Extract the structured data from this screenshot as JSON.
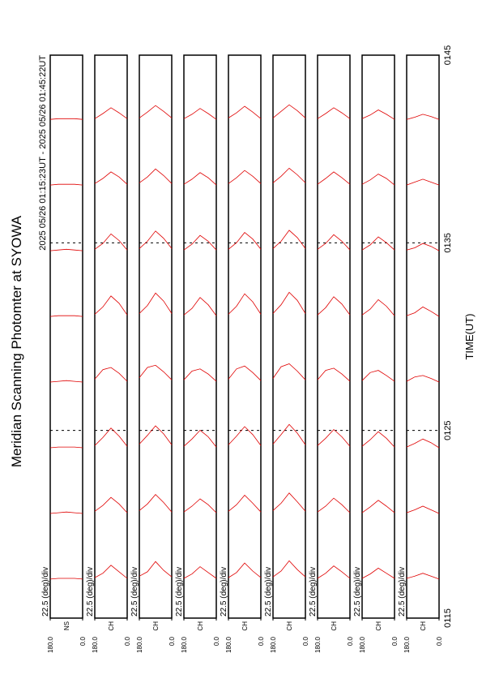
{
  "chart_data": {
    "type": "scan",
    "title": "Meridian Scanning Photomter at SYOWA",
    "subtitle": "2025 05/26 01:15:23UT - 2025 05/26 01:45:22UT",
    "x_label": "TIME(UT)",
    "xlim": [
      75,
      105
    ],
    "xticks": [
      {
        "value": 75,
        "label": "0115"
      },
      {
        "value": 85,
        "label": "0125"
      },
      {
        "value": 95,
        "label": "0135"
      },
      {
        "value": 105,
        "label": "0145"
      }
    ],
    "x": [
      77,
      80.5,
      84,
      87.5,
      91,
      94.5,
      98,
      101.5
    ],
    "color": "#e00000",
    "panels": [
      {
        "label": "NS",
        "scale_label": "22.5 (deg)/div",
        "ylim": [
          0,
          180
        ],
        "yticks": [
          {
            "value": 0,
            "label": "0.0"
          },
          {
            "value": 180,
            "label": "180.0"
          }
        ],
        "profiles": [
          [
            0.2,
            0.3,
            0.3,
            0.3,
            0.2
          ],
          [
            0.2,
            0.3,
            0.4,
            0.3,
            0.2
          ],
          [
            0.2,
            0.3,
            0.3,
            0.3,
            0.2
          ],
          [
            0.2,
            0.3,
            0.4,
            0.3,
            0.2
          ],
          [
            0.2,
            0.3,
            0.3,
            0.3,
            0.2
          ],
          [
            0.2,
            0.3,
            0.4,
            0.3,
            0.2
          ],
          [
            0.2,
            0.3,
            0.3,
            0.3,
            0.2
          ],
          [
            0.2,
            0.3,
            0.3,
            0.3,
            0.2
          ]
        ]
      },
      {
        "label": "CH",
        "scale_label": "22.5 (deg)/div",
        "ylim": [
          0,
          180
        ],
        "yticks": [
          {
            "value": 0,
            "label": "0.0"
          },
          {
            "value": 180,
            "label": "180.0"
          }
        ],
        "profiles": [
          [
            0.3,
            1.2,
            2.1,
            1.0,
            0.4
          ],
          [
            0.3,
            1.5,
            2.4,
            1.3,
            0.5
          ],
          [
            0.4,
            1.8,
            2.9,
            1.6,
            0.5
          ],
          [
            0.3,
            1.4,
            2.2,
            1.9,
            0.6
          ],
          [
            0.4,
            2.0,
            3.0,
            1.5,
            0.5
          ],
          [
            0.3,
            1.6,
            2.5,
            1.2,
            0.4
          ],
          [
            0.3,
            1.3,
            2.0,
            1.1,
            0.4
          ],
          [
            0.3,
            1.1,
            1.8,
            1.0,
            0.3
          ]
        ]
      },
      {
        "label": "CH",
        "scale_label": "22.5 (deg)/div",
        "ylim": [
          0,
          180
        ],
        "yticks": [
          {
            "value": 0,
            "label": "0.0"
          },
          {
            "value": 180,
            "label": "180.0"
          }
        ],
        "profiles": [
          [
            0.5,
            1.4,
            2.6,
            1.2,
            0.6
          ],
          [
            0.4,
            1.7,
            2.8,
            1.5,
            0.6
          ],
          [
            0.6,
            2.1,
            3.2,
            1.9,
            0.7
          ],
          [
            0.5,
            1.6,
            2.5,
            2.2,
            0.8
          ],
          [
            0.6,
            2.3,
            3.4,
            1.7,
            0.6
          ],
          [
            0.5,
            1.9,
            2.9,
            1.5,
            0.5
          ],
          [
            0.4,
            1.5,
            2.4,
            1.3,
            0.5
          ],
          [
            0.4,
            1.3,
            2.1,
            1.2,
            0.4
          ]
        ]
      },
      {
        "label": "CH",
        "scale_label": "22.5 (deg)/div",
        "ylim": [
          0,
          180
        ],
        "yticks": [
          {
            "value": 0,
            "label": "0.0"
          },
          {
            "value": 180,
            "label": "180.0"
          }
        ],
        "profiles": [
          [
            0.3,
            1.1,
            1.9,
            0.9,
            0.3
          ],
          [
            0.3,
            1.4,
            2.2,
            1.2,
            0.4
          ],
          [
            0.3,
            1.7,
            2.6,
            1.4,
            0.4
          ],
          [
            0.3,
            1.3,
            2.0,
            1.7,
            0.5
          ],
          [
            0.3,
            1.8,
            2.8,
            1.3,
            0.4
          ],
          [
            0.3,
            1.5,
            2.3,
            1.1,
            0.3
          ],
          [
            0.2,
            1.2,
            1.9,
            1.0,
            0.3
          ],
          [
            0.2,
            1.0,
            1.7,
            0.9,
            0.3
          ]
        ]
      },
      {
        "label": "CH",
        "scale_label": "22.5 (deg)/div",
        "ylim": [
          0,
          180
        ],
        "yticks": [
          {
            "value": 0,
            "label": "0.0"
          },
          {
            "value": 180,
            "label": "180.0"
          }
        ],
        "profiles": [
          [
            0.4,
            1.3,
            2.4,
            1.1,
            0.4
          ],
          [
            0.4,
            1.6,
            2.7,
            1.4,
            0.5
          ],
          [
            0.5,
            2.0,
            3.1,
            1.8,
            0.6
          ],
          [
            0.4,
            1.5,
            2.4,
            2.0,
            0.6
          ],
          [
            0.5,
            2.2,
            3.3,
            1.6,
            0.5
          ],
          [
            0.4,
            1.8,
            2.7,
            1.3,
            0.4
          ],
          [
            0.4,
            1.4,
            2.2,
            1.2,
            0.4
          ],
          [
            0.3,
            1.2,
            2.0,
            1.1,
            0.4
          ]
        ]
      },
      {
        "label": "CH",
        "scale_label": "22.5 (deg)/div",
        "ylim": [
          0,
          180
        ],
        "yticks": [
          {
            "value": 0,
            "label": "0.0"
          },
          {
            "value": 180,
            "label": "180.0"
          }
        ],
        "profiles": [
          [
            0.5,
            1.5,
            2.7,
            1.3,
            0.5
          ],
          [
            0.5,
            1.8,
            3.0,
            1.6,
            0.6
          ],
          [
            0.6,
            2.2,
            3.4,
            2.0,
            0.7
          ],
          [
            0.5,
            1.7,
            2.7,
            2.3,
            0.7
          ],
          [
            0.6,
            2.4,
            3.5,
            1.8,
            0.6
          ],
          [
            0.5,
            2.0,
            3.0,
            1.5,
            0.5
          ],
          [
            0.5,
            1.6,
            2.5,
            1.4,
            0.5
          ],
          [
            0.4,
            1.4,
            2.2,
            1.3,
            0.4
          ]
        ]
      },
      {
        "label": "CH",
        "scale_label": "22.5 (deg)/div",
        "ylim": [
          0,
          180
        ],
        "yticks": [
          {
            "value": 0,
            "label": "0.0"
          },
          {
            "value": 180,
            "label": "180.0"
          }
        ],
        "profiles": [
          [
            0.3,
            1.2,
            2.0,
            1.0,
            0.3
          ],
          [
            0.3,
            1.4,
            2.3,
            1.2,
            0.4
          ],
          [
            0.4,
            1.7,
            2.7,
            1.5,
            0.5
          ],
          [
            0.3,
            1.3,
            2.1,
            1.8,
            0.5
          ],
          [
            0.4,
            1.9,
            2.9,
            1.4,
            0.4
          ],
          [
            0.3,
            1.5,
            2.4,
            1.2,
            0.4
          ],
          [
            0.3,
            1.2,
            2.0,
            1.1,
            0.3
          ],
          [
            0.3,
            1.1,
            1.8,
            1.0,
            0.3
          ]
        ]
      },
      {
        "label": "CH",
        "scale_label": "22.5 (deg)/div",
        "ylim": [
          0,
          180
        ],
        "yticks": [
          {
            "value": 0,
            "label": "0.0"
          },
          {
            "value": 180,
            "label": "180.0"
          }
        ],
        "profiles": [
          [
            0.3,
            1.0,
            1.7,
            0.9,
            0.3
          ],
          [
            0.3,
            1.2,
            2.0,
            1.1,
            0.3
          ],
          [
            0.3,
            1.5,
            2.4,
            1.3,
            0.4
          ],
          [
            0.3,
            1.1,
            1.8,
            1.5,
            0.4
          ],
          [
            0.3,
            1.6,
            2.5,
            1.2,
            0.4
          ],
          [
            0.3,
            1.3,
            2.1,
            1.0,
            0.3
          ],
          [
            0.2,
            1.1,
            1.7,
            0.9,
            0.3
          ],
          [
            0.2,
            0.9,
            1.5,
            0.8,
            0.3
          ]
        ]
      },
      {
        "label": "CH",
        "scale_label": "22.5 (deg)/div",
        "ylim": [
          0,
          180
        ],
        "yticks": [
          {
            "value": 0,
            "label": "0.0"
          },
          {
            "value": 180,
            "label": "180.0"
          }
        ],
        "profiles": [
          [
            0.2,
            0.6,
            1.0,
            0.6,
            0.3
          ],
          [
            0.2,
            0.7,
            1.2,
            0.7,
            0.3
          ],
          [
            0.2,
            0.9,
            1.4,
            0.8,
            0.3
          ],
          [
            0.2,
            0.7,
            1.1,
            0.9,
            0.3
          ],
          [
            0.2,
            0.9,
            1.5,
            0.7,
            0.3
          ],
          [
            0.2,
            0.8,
            1.2,
            0.6,
            0.3
          ],
          [
            0.2,
            0.6,
            1.0,
            0.6,
            0.2
          ],
          [
            0.2,
            0.6,
            0.9,
            0.5,
            0.2
          ]
        ]
      }
    ]
  }
}
